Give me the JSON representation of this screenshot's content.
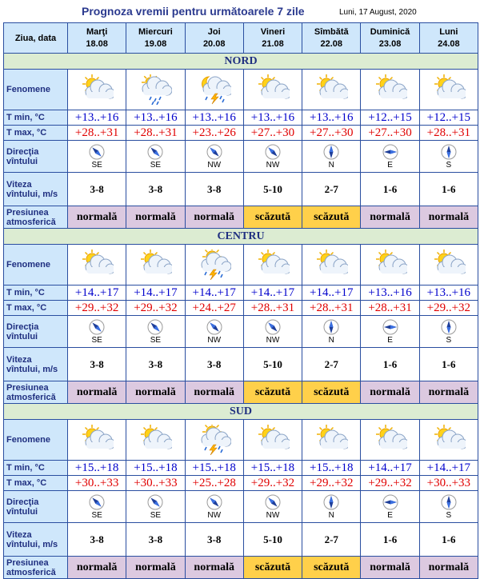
{
  "header": {
    "title": "Prognoza vremii pentru următoarele 7 zile",
    "date": "Luni, 17 August, 2020"
  },
  "labels": {
    "day": "Ziua, data",
    "fenomene": "Fenomene",
    "tmin": "T min, °C",
    "tmax": "T max, °C",
    "dir": "Direcţia vîntului",
    "vit": "Viteza vîntului, m/s",
    "pres": "Presiunea atmosferică"
  },
  "days": [
    {
      "name": "Marţi",
      "date": "18.08"
    },
    {
      "name": "Miercuri",
      "date": "19.08"
    },
    {
      "name": "Joi",
      "date": "20.08"
    },
    {
      "name": "Vineri",
      "date": "21.08"
    },
    {
      "name": "Sîmbătă",
      "date": "22.08"
    },
    {
      "name": "Duminică",
      "date": "23.08"
    },
    {
      "name": "Luni",
      "date": "24.08"
    }
  ],
  "regions": [
    {
      "name": "NORD",
      "icons": [
        "sun-cloud-icon",
        "cloud-rain-icon",
        "moon-storm-icon",
        "sun-cloud-icon",
        "sun-cloud-icon",
        "sun-cloud-icon",
        "sun-cloud-icon"
      ],
      "tmin": [
        "+13..+16",
        "+13..+16",
        "+13..+16",
        "+13..+16",
        "+13..+16",
        "+12..+15",
        "+12..+15"
      ],
      "tmax": [
        "+28..+31",
        "+28..+31",
        "+23..+26",
        "+27..+30",
        "+27..+30",
        "+27..+30",
        "+28..+31"
      ],
      "dir": [
        "SE",
        "SE",
        "NW",
        "NW",
        "N",
        "E",
        "S"
      ],
      "vit": [
        "3-8",
        "3-8",
        "3-8",
        "5-10",
        "2-7",
        "1-6",
        "1-6"
      ],
      "pres": [
        "normală",
        "normală",
        "normală",
        "scăzută",
        "scăzută",
        "normală",
        "normală"
      ]
    },
    {
      "name": "CENTRU",
      "icons": [
        "sun-cloud-icon",
        "sun-cloud-icon",
        "sun-storm-icon",
        "sun-cloud-icon",
        "sun-cloud-icon",
        "sun-cloud-icon",
        "sun-cloud-icon"
      ],
      "tmin": [
        "+14..+17",
        "+14..+17",
        "+14..+17",
        "+14..+17",
        "+14..+17",
        "+13..+16",
        "+13..+16"
      ],
      "tmax": [
        "+29..+32",
        "+29..+32",
        "+24..+27",
        "+28..+31",
        "+28..+31",
        "+28..+31",
        "+29..+32"
      ],
      "dir": [
        "SE",
        "SE",
        "NW",
        "NW",
        "N",
        "E",
        "S"
      ],
      "vit": [
        "3-8",
        "3-8",
        "3-8",
        "5-10",
        "2-7",
        "1-6",
        "1-6"
      ],
      "pres": [
        "normală",
        "normală",
        "normală",
        "scăzută",
        "scăzută",
        "normală",
        "normală"
      ]
    },
    {
      "name": "SUD",
      "icons": [
        "sun-cloud-icon",
        "sun-cloud-icon",
        "sun-storm-icon",
        "sun-cloud-icon",
        "sun-cloud-icon",
        "sun-cloud-icon",
        "sun-cloud-icon"
      ],
      "tmin": [
        "+15..+18",
        "+15..+18",
        "+15..+18",
        "+15..+18",
        "+15..+18",
        "+14..+17",
        "+14..+17"
      ],
      "tmax": [
        "+30..+33",
        "+30..+33",
        "+25..+28",
        "+29..+32",
        "+29..+32",
        "+29..+32",
        "+30..+33"
      ],
      "dir": [
        "SE",
        "SE",
        "NW",
        "NW",
        "N",
        "E",
        "S"
      ],
      "vit": [
        "3-8",
        "3-8",
        "3-8",
        "5-10",
        "2-7",
        "1-6",
        "1-6"
      ],
      "pres": [
        "normală",
        "normală",
        "normală",
        "scăzută",
        "scăzută",
        "normală",
        "normală"
      ]
    }
  ],
  "colors": {
    "normal": "#dcc9e0",
    "low": "#ffd04a",
    "tmin": "#0000cc",
    "tmax": "#e00000",
    "header": "#cfe7fb",
    "region": "#dcecd2"
  }
}
